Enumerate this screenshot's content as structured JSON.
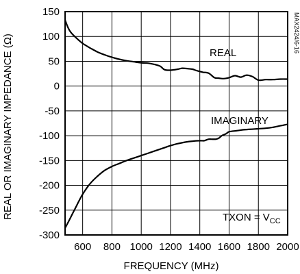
{
  "chart_data": {
    "type": "line",
    "xlabel": "FREQUENCY (MHz)",
    "ylabel": "REAL OR IMAGINARY IMPEDANCE (Ω)",
    "xlim": [
      480,
      2000
    ],
    "ylim": [
      -300,
      150
    ],
    "x_ticks": [
      "600",
      "800",
      "1000",
      "1200",
      "1400",
      "1600",
      "1800",
      "2000"
    ],
    "y_ticks": [
      "150",
      "100",
      "50",
      "0",
      "-50",
      "-100",
      "-150",
      "-200",
      "-250",
      "-300"
    ],
    "grid": true,
    "figure_code": "MAX2424/6-16",
    "condition": {
      "text": "TXON = V",
      "subscript": "CC"
    },
    "series": [
      {
        "name": "REAL",
        "x": [
          480,
          500,
          520,
          560,
          600,
          650,
          700,
          750,
          800,
          850,
          900,
          950,
          1000,
          1050,
          1100,
          1130,
          1160,
          1200,
          1250,
          1280,
          1320,
          1350,
          1380,
          1420,
          1460,
          1500,
          1530,
          1560,
          1600,
          1640,
          1680,
          1720,
          1760,
          1800,
          1850,
          1900,
          1950,
          2000
        ],
        "y": [
          133,
          118,
          108,
          96,
          86,
          77,
          69,
          63,
          58,
          54,
          51,
          49,
          47,
          46,
          43,
          40,
          33,
          32,
          34,
          36,
          35,
          34,
          31,
          28,
          26,
          17,
          16,
          15,
          17,
          21,
          18,
          22,
          19,
          12,
          13,
          13,
          14,
          14
        ]
      },
      {
        "name": "IMAGINARY",
        "x": [
          480,
          500,
          550,
          600,
          650,
          700,
          750,
          800,
          850,
          900,
          950,
          1000,
          1050,
          1100,
          1150,
          1200,
          1250,
          1300,
          1350,
          1400,
          1430,
          1460,
          1480,
          1510,
          1530,
          1550,
          1580,
          1600,
          1650,
          1700,
          1750,
          1800,
          1850,
          1900,
          1950,
          2000
        ],
        "y": [
          -286,
          -275,
          -246,
          -218,
          -197,
          -182,
          -170,
          -162,
          -156,
          -150,
          -145,
          -140,
          -135,
          -130,
          -125,
          -120,
          -116,
          -113,
          -111,
          -110,
          -110,
          -107,
          -107,
          -107,
          -105,
          -100,
          -96,
          -92,
          -90,
          -88,
          -87,
          -86,
          -85,
          -83,
          -80,
          -77
        ]
      }
    ]
  }
}
